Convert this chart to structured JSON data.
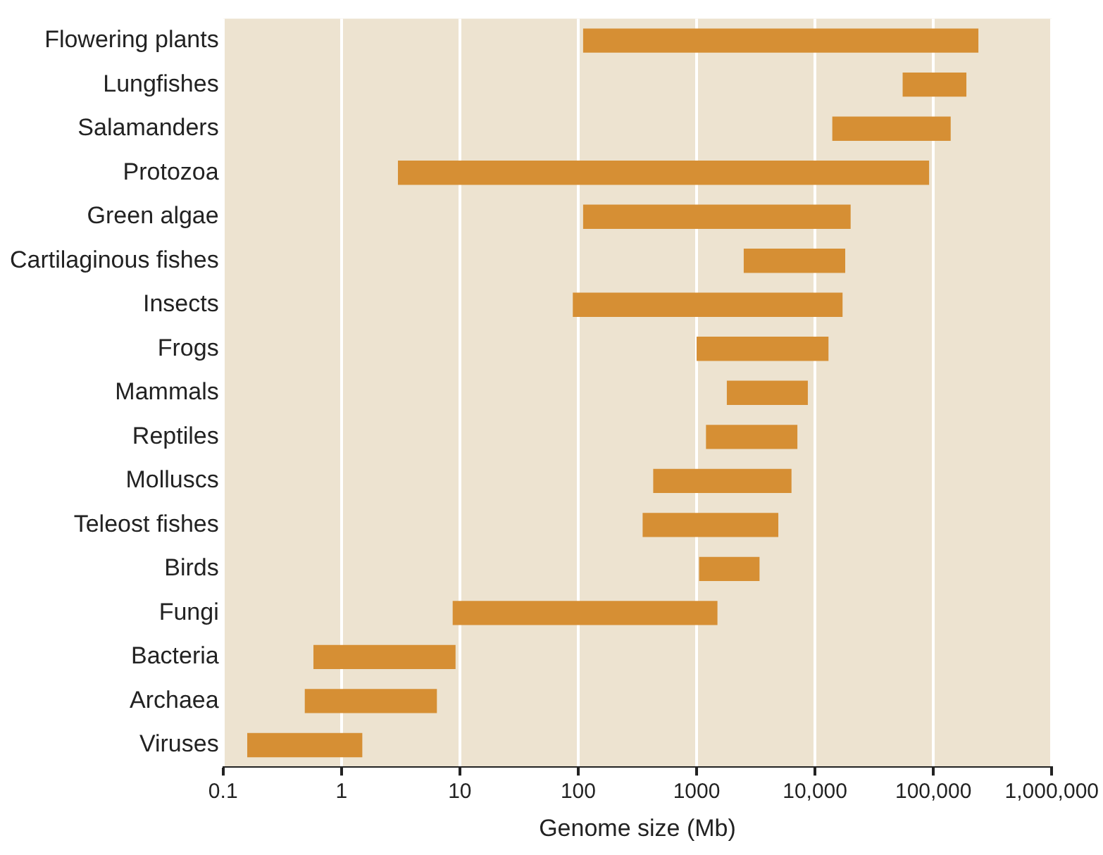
{
  "chart_data": {
    "type": "bar",
    "orientation": "horizontal",
    "xlabel": "Genome size (Mb)",
    "log": "x",
    "grid": "x",
    "legend": false,
    "categories": [
      "Flowering plants",
      "Lungfishes",
      "Salamanders",
      "Protozoa",
      "Green algae",
      "Cartilaginous fishes",
      "Insects",
      "Frogs",
      "Mammals",
      "Reptiles",
      "Molluscs",
      "Teleost fishes",
      "Birds",
      "Fungi",
      "Bacteria",
      "Archaea",
      "Viruses"
    ],
    "base": [
      110,
      55000,
      14000,
      3,
      110,
      2500,
      90,
      1000,
      1800,
      1200,
      430,
      350,
      1050,
      8.7,
      0.58,
      0.49,
      0.16
    ],
    "values": [
      239890,
      135000,
      126000,
      92000,
      19890,
      15500,
      17000,
      12000,
      6900,
      5900,
      5900,
      4550,
      2350,
      1491,
      8.62,
      5.91,
      1.34
    ],
    "color": "#d68f34",
    "xlim": [
      0.1,
      1000000
    ],
    "xticks": [
      0.1,
      1,
      10,
      100,
      1000,
      {
        "value": 10000,
        "label": "10,000"
      },
      {
        "value": 100000,
        "label": "100,000"
      },
      {
        "value": 1000000,
        "label": "1,000,000"
      }
    ]
  }
}
